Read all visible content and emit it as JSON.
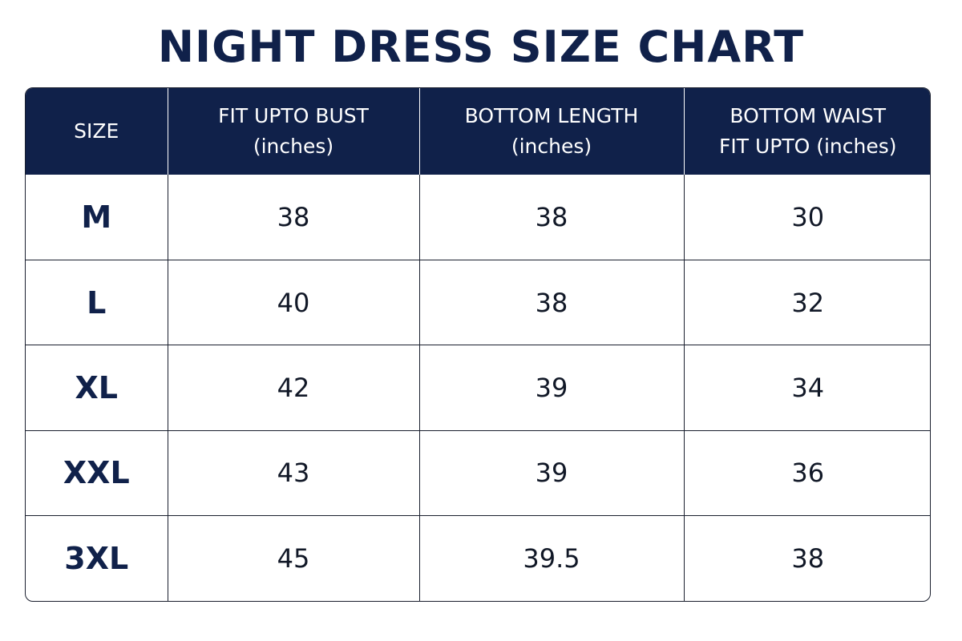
{
  "title": "NIGHT DRESS SIZE CHART",
  "columns": [
    {
      "line1": "SIZE",
      "line2": ""
    },
    {
      "line1": "FIT UPTO BUST",
      "line2": "(inches)"
    },
    {
      "line1": "BOTTOM LENGTH",
      "line2": "(inches)"
    },
    {
      "line1": "BOTTOM WAIST",
      "line2": "FIT UPTO (inches)"
    }
  ],
  "rows": [
    {
      "size": "M",
      "bust": "38",
      "bottom_length": "38",
      "bottom_waist": "30"
    },
    {
      "size": "L",
      "bust": "40",
      "bottom_length": "38",
      "bottom_waist": "32"
    },
    {
      "size": "XL",
      "bust": "42",
      "bottom_length": "39",
      "bottom_waist": "34"
    },
    {
      "size": "XXL",
      "bust": "43",
      "bottom_length": "39",
      "bottom_waist": "36"
    },
    {
      "size": "3XL",
      "bust": "45",
      "bottom_length": "39.5",
      "bottom_waist": "38"
    }
  ],
  "colors": {
    "header_bg": "#10214a",
    "header_text": "#ffffff",
    "title_text": "#10214a",
    "border": "#1a1f2e"
  }
}
